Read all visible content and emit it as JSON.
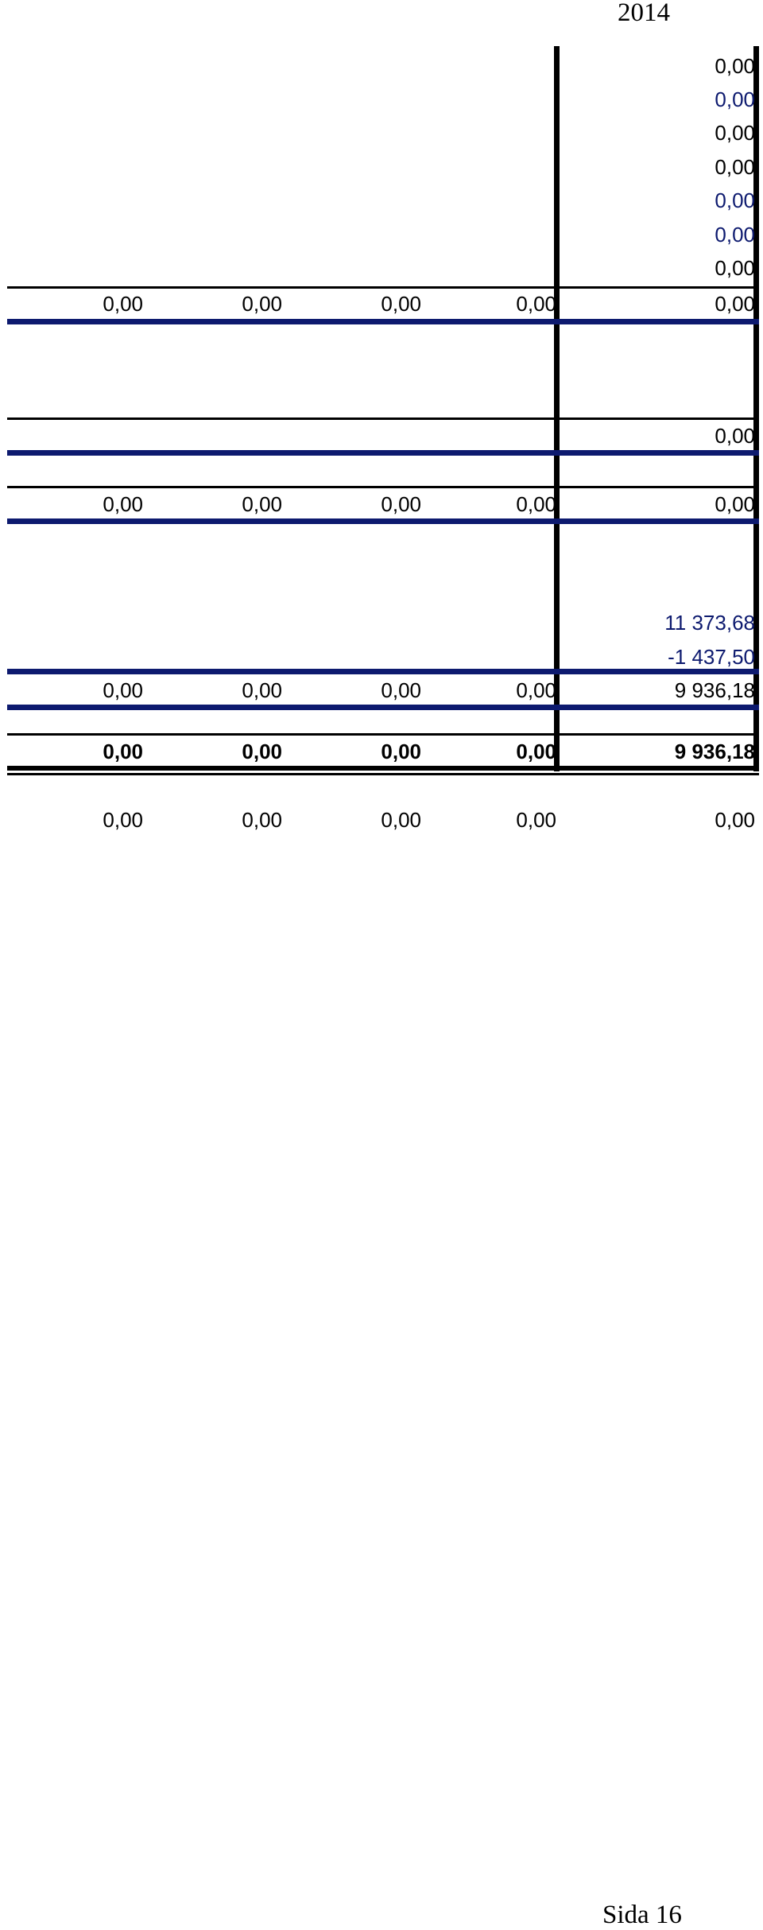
{
  "header": {
    "year": "2014"
  },
  "section1": {
    "column_values": [
      "0,00",
      "0,00",
      "0,00",
      "0,00",
      "0,00",
      "0,00",
      "0,00"
    ],
    "subtotal": [
      "0,00",
      "0,00",
      "0,00",
      "0,00",
      "0,00"
    ]
  },
  "section2": {
    "value": "0,00",
    "subtotal": [
      "0,00",
      "0,00",
      "0,00",
      "0,00",
      "0,00"
    ]
  },
  "section3": {
    "values": [
      "11 373,68",
      "-1 437,50"
    ],
    "subtotal": [
      "0,00",
      "0,00",
      "0,00",
      "0,00",
      "9 936,18"
    ]
  },
  "grand_total": [
    "0,00",
    "0,00",
    "0,00",
    "0,00",
    "9 936,18"
  ],
  "after_total": [
    "0,00",
    "0,00",
    "0,00",
    "0,00",
    "0,00"
  ],
  "footer": {
    "page_label": "Sida 16"
  },
  "colors": {
    "navy": "#0d1a6f",
    "black": "#000000"
  }
}
